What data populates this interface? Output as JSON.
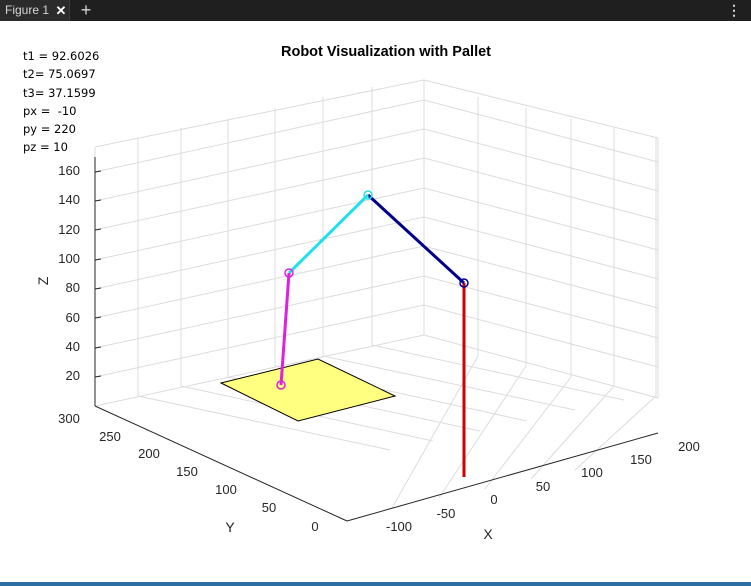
{
  "window": {
    "tab_label": "Figure 1",
    "new_tab_label": "+",
    "menu_label": "⋮"
  },
  "annotations": [
    {
      "label": "t1",
      "text": "t1 = 92.6026"
    },
    {
      "label": "t2",
      "text": "t2= 75.0697"
    },
    {
      "label": "t3",
      "text": "t3= 37.1599"
    },
    {
      "label": "px",
      "text": "px =  -10"
    },
    {
      "label": "py",
      "text": "py = 220"
    },
    {
      "label": "pz",
      "text": "pz = 10"
    }
  ],
  "chart_data": {
    "type": "3d-line",
    "title": "Robot Visualization with Pallet",
    "xlabel": "X",
    "ylabel": "Y",
    "zlabel": "Z",
    "x_ticks": [
      "-100",
      "-50",
      "0",
      "50",
      "100",
      "150",
      "200"
    ],
    "y_ticks": [
      "0",
      "50",
      "100",
      "150",
      "200",
      "250",
      "300"
    ],
    "z_ticks": [
      "20",
      "40",
      "60",
      "80",
      "100",
      "120",
      "140",
      "160"
    ],
    "grid": true,
    "joint_angles": {
      "t1": 92.6026,
      "t2": 75.0697,
      "t3": 37.1599
    },
    "target": {
      "px": -10,
      "py": 220,
      "pz": 10
    },
    "pallet": {
      "color": "#ffff80"
    },
    "links": [
      {
        "name": "base",
        "color": "#d00000"
      },
      {
        "name": "link-1",
        "color": "#00008b"
      },
      {
        "name": "link-2",
        "color": "#22e0e8"
      },
      {
        "name": "link-3",
        "color": "#e020e0"
      }
    ]
  }
}
